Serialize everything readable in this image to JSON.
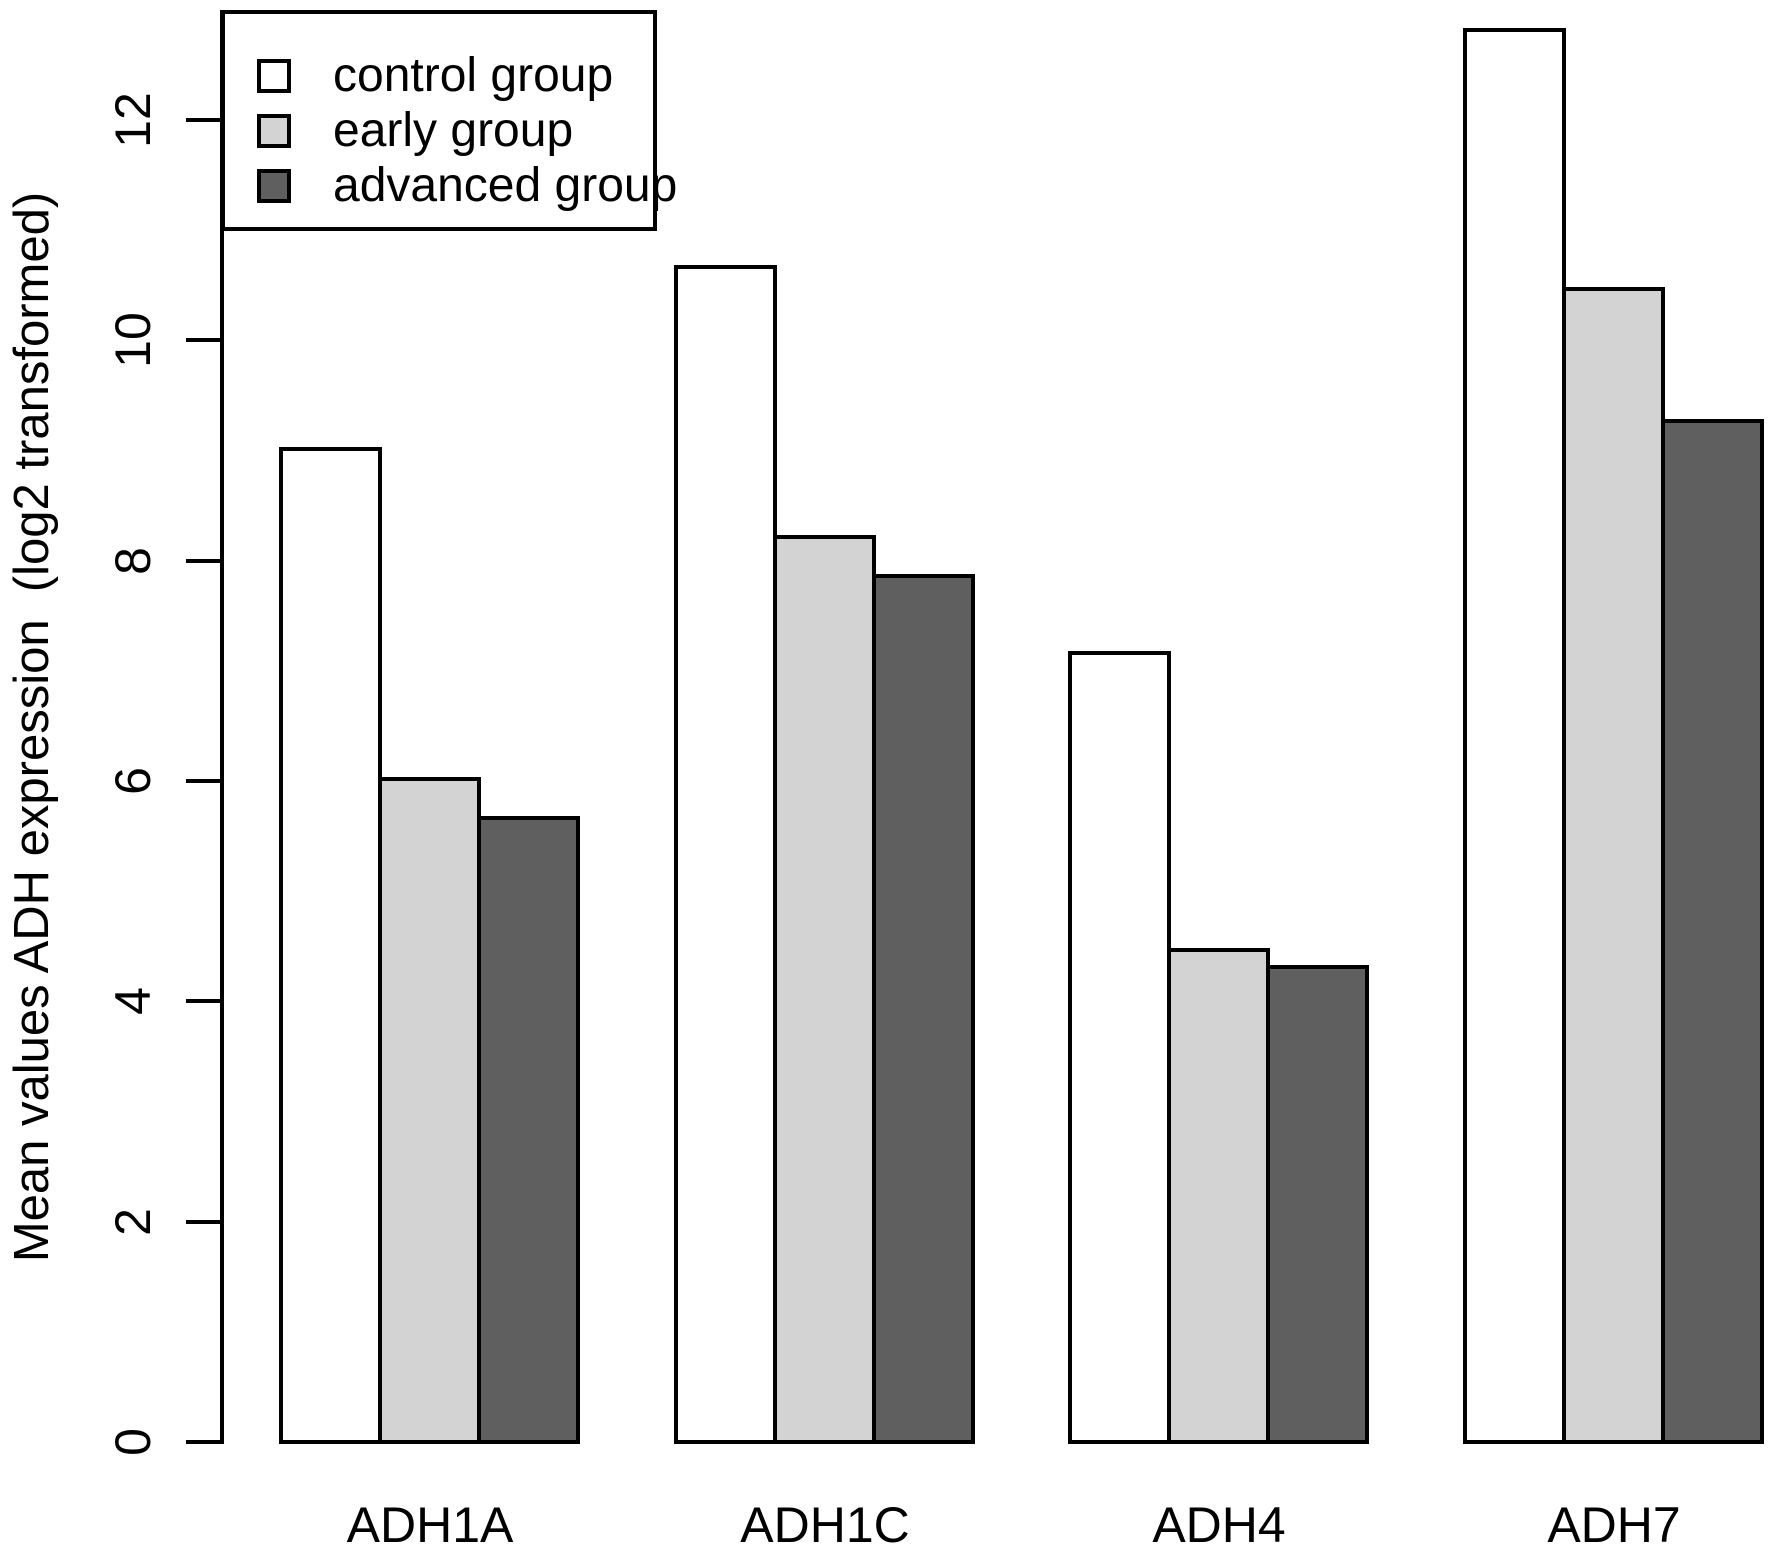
{
  "chart_data": {
    "type": "bar",
    "title": "",
    "xlabel": "",
    "ylabel": "Mean values ADH expression  (log2 transformed)",
    "categories": [
      "ADH1A",
      "ADH1C",
      "ADH4",
      "ADH7"
    ],
    "series": [
      {
        "name": "control group",
        "color": "#ffffff",
        "values": [
          9.05,
          10.7,
          7.2,
          12.85
        ]
      },
      {
        "name": "early group",
        "color": "#d3d3d3",
        "values": [
          6.05,
          8.25,
          4.5,
          10.5
        ]
      },
      {
        "name": "advanced group",
        "color": "#5f5f5f",
        "values": [
          5.7,
          7.9,
          4.35,
          9.3
        ]
      }
    ],
    "ylim": [
      0,
      13
    ],
    "yticks": [
      0,
      2,
      4,
      6,
      8,
      10,
      12
    ],
    "grid": false,
    "legend_position": "top-left",
    "bar_border_color": "#000000"
  }
}
